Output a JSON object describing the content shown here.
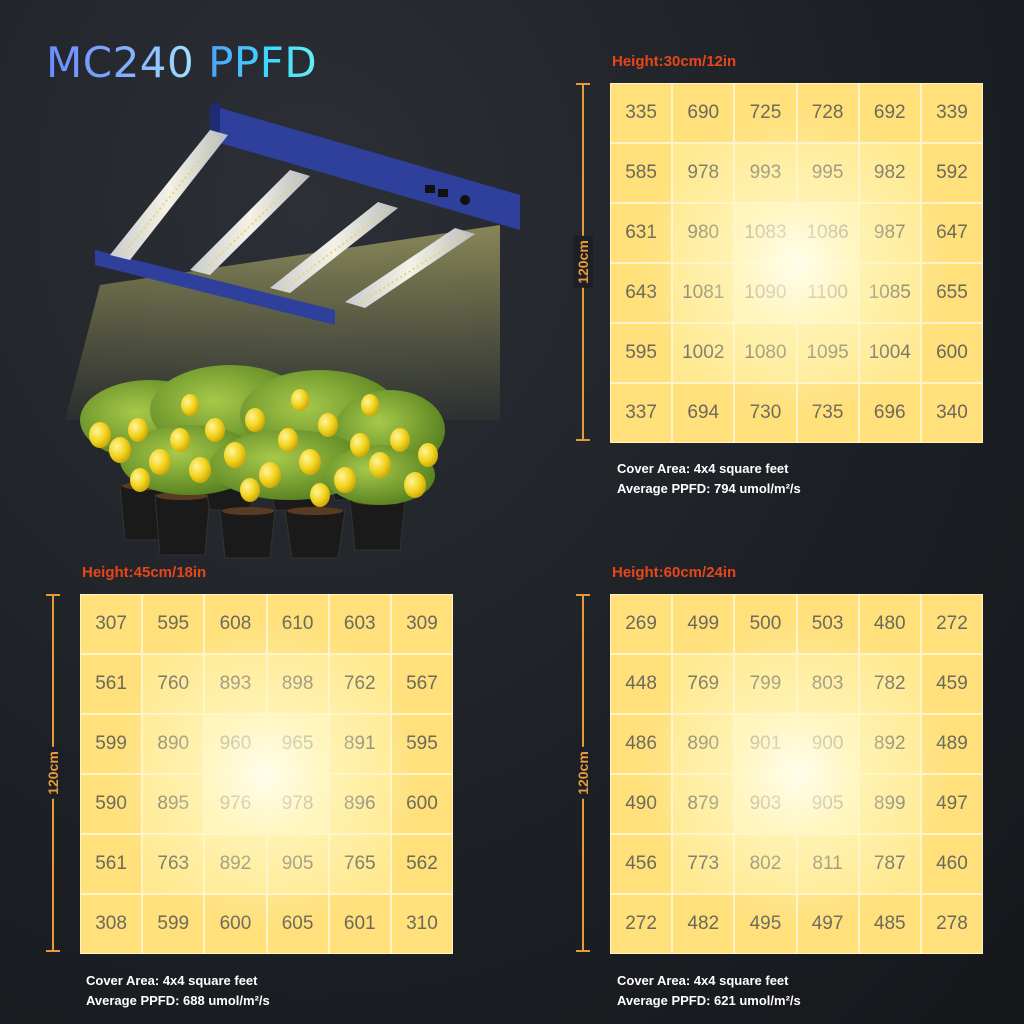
{
  "title": {
    "part1": "MC240",
    "part2": "PPFD"
  },
  "photo_alt": "grow light over lemon trees",
  "panels": [
    {
      "height_label": "Height:30cm/12in",
      "axis_label": "120cm",
      "rows": [
        [
          "335",
          "690",
          "725",
          "728",
          "692",
          "339"
        ],
        [
          "585",
          "978",
          "993",
          "995",
          "982",
          "592"
        ],
        [
          "631",
          "980",
          "1083",
          "1086",
          "987",
          "647"
        ],
        [
          "643",
          "1081",
          "1090",
          "1100",
          "1085",
          "655"
        ],
        [
          "595",
          "1002",
          "1080",
          "1095",
          "1004",
          "600"
        ],
        [
          "337",
          "694",
          "730",
          "735",
          "696",
          "340"
        ]
      ],
      "cover_area": "Cover Area: 4x4 square feet",
      "average_ppfd": "Average PPFD: 794 umol/m²/s"
    },
    {
      "height_label": "Height:45cm/18in",
      "axis_label": "120cm",
      "rows": [
        [
          "307",
          "595",
          "608",
          "610",
          "603",
          "309"
        ],
        [
          "561",
          "760",
          "893",
          "898",
          "762",
          "567"
        ],
        [
          "599",
          "890",
          "960",
          "965",
          "891",
          "595"
        ],
        [
          "590",
          "895",
          "976",
          "978",
          "896",
          "600"
        ],
        [
          "561",
          "763",
          "892",
          "905",
          "765",
          "562"
        ],
        [
          "308",
          "599",
          "600",
          "605",
          "601",
          "310"
        ]
      ],
      "cover_area": "Cover Area: 4x4 square feet",
      "average_ppfd": "Average PPFD: 688 umol/m²/s"
    },
    {
      "height_label": "Height:60cm/24in",
      "axis_label": "120cm",
      "rows": [
        [
          "269",
          "499",
          "500",
          "503",
          "480",
          "272"
        ],
        [
          "448",
          "769",
          "799",
          "803",
          "782",
          "459"
        ],
        [
          "486",
          "890",
          "901",
          "900",
          "892",
          "489"
        ],
        [
          "490",
          "879",
          "903",
          "905",
          "899",
          "497"
        ],
        [
          "456",
          "773",
          "802",
          "811",
          "787",
          "460"
        ],
        [
          "272",
          "482",
          "495",
          "497",
          "485",
          "278"
        ]
      ],
      "cover_area": "Cover Area: 4x4 square feet",
      "average_ppfd": "Average PPFD: 621 umol/m²/s"
    }
  ],
  "colors": {
    "height_label": "#e8461a",
    "axis": "#e89a3a",
    "cell": "#ffe07a",
    "fixture": "#2e3f9c"
  }
}
